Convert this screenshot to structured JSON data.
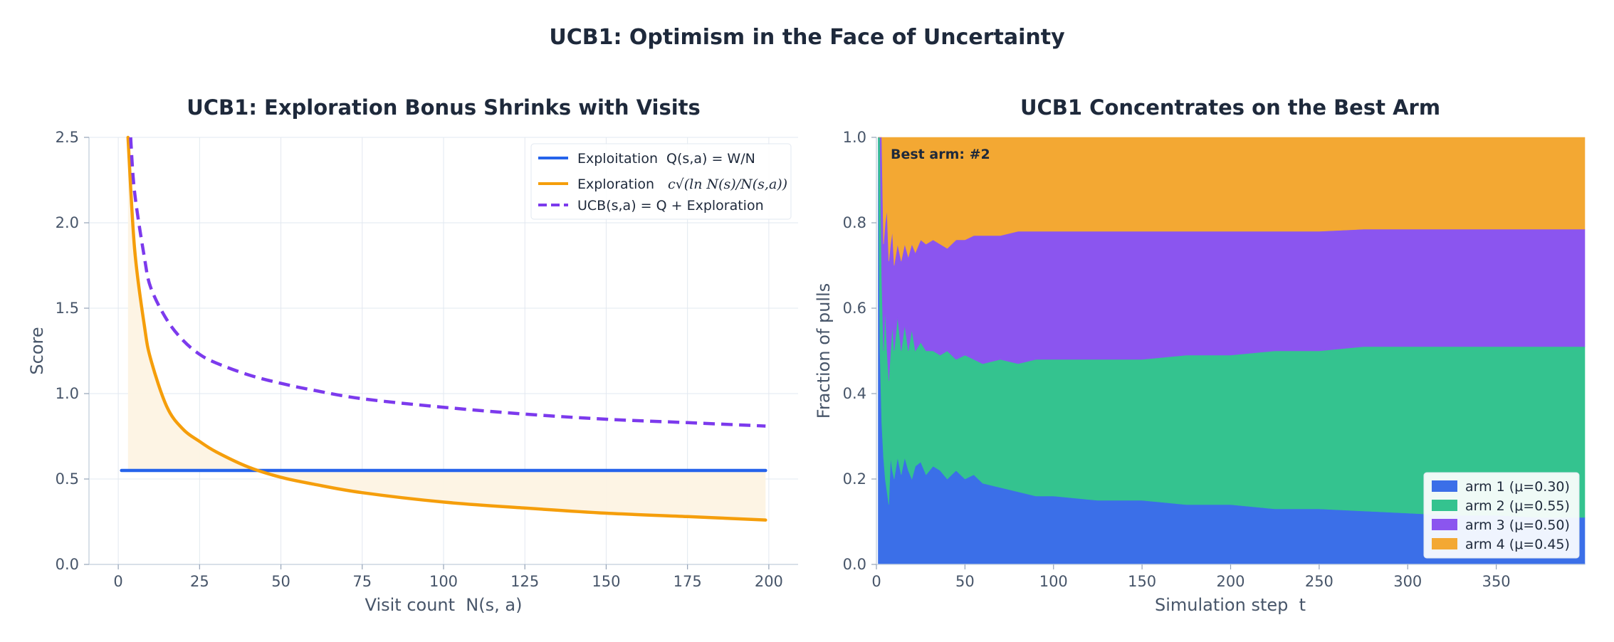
{
  "suptitle": "UCB1: Optimism in the Face of Uncertainty",
  "chart_data": [
    {
      "type": "line",
      "title": "UCB1: Exploration Bonus Shrinks with Visits",
      "xlabel": "Visit count  N(s, a)",
      "ylabel": "Score",
      "xlim": [
        -9,
        209
      ],
      "ylim": [
        0,
        2.5
      ],
      "xticks": [
        "0",
        "25",
        "50",
        "75",
        "100",
        "125",
        "150",
        "175",
        "200"
      ],
      "yticks": [
        "0.0",
        "0.5",
        "1.0",
        "1.5",
        "2.0",
        "2.5"
      ],
      "grid": true,
      "legend_position": "top-right",
      "shaded_region": "between exploitation line and exploration curve",
      "series": [
        {
          "name": "Exploitation  Q(s,a) = W/N",
          "color": "#2563eb",
          "style": "solid",
          "x": [
            1,
            199
          ],
          "y": [
            0.55,
            0.55
          ]
        },
        {
          "name": "Exploration",
          "formula": "c√(ln N(s)/N(s,a))",
          "color": "#f59e0b",
          "style": "solid",
          "x": [
            3,
            5,
            8,
            10,
            15,
            20,
            25,
            30,
            40,
            50,
            60,
            75,
            100,
            125,
            150,
            175,
            199
          ],
          "y": [
            2.5,
            1.85,
            1.4,
            1.2,
            0.92,
            0.79,
            0.72,
            0.66,
            0.57,
            0.51,
            0.47,
            0.42,
            0.365,
            0.33,
            0.3,
            0.28,
            0.26
          ]
        },
        {
          "name": "UCB(s,a) = Q + Exploration",
          "color": "#7c3aed",
          "style": "dashed",
          "x": [
            3.8,
            5,
            8,
            10,
            15,
            20,
            25,
            30,
            40,
            50,
            60,
            75,
            100,
            125,
            150,
            175,
            199
          ],
          "y": [
            2.5,
            2.18,
            1.8,
            1.62,
            1.43,
            1.31,
            1.23,
            1.18,
            1.11,
            1.06,
            1.02,
            0.97,
            0.92,
            0.88,
            0.85,
            0.83,
            0.81
          ]
        }
      ]
    },
    {
      "type": "area",
      "stacked": true,
      "title": "UCB1 Concentrates on the Best Arm",
      "xlabel": "Simulation step  t",
      "ylabel": "Fraction of pulls",
      "xlim": [
        0,
        400
      ],
      "ylim": [
        0,
        1.0
      ],
      "xticks": [
        "0",
        "50",
        "100",
        "150",
        "200",
        "250",
        "300",
        "350"
      ],
      "yticks": [
        "0.0",
        "0.2",
        "0.4",
        "0.6",
        "0.8",
        "1.0"
      ],
      "grid": false,
      "legend_position": "bottom-right",
      "annotation": "Best arm: #2",
      "x": [
        1,
        2,
        3,
        4,
        5,
        6,
        7,
        8,
        9,
        10,
        12,
        14,
        16,
        18,
        20,
        22,
        25,
        28,
        32,
        36,
        40,
        45,
        50,
        55,
        60,
        70,
        80,
        90,
        100,
        125,
        150,
        175,
        200,
        225,
        250,
        275,
        300,
        325,
        350,
        375,
        400
      ],
      "series": [
        {
          "name": "arm 1 (μ=0.30)",
          "color": "#3b6fe8",
          "cum_upper": [
            1.0,
            0.5,
            0.33,
            0.25,
            0.2,
            0.17,
            0.14,
            0.25,
            0.22,
            0.2,
            0.25,
            0.21,
            0.25,
            0.22,
            0.2,
            0.23,
            0.24,
            0.21,
            0.23,
            0.22,
            0.2,
            0.22,
            0.2,
            0.21,
            0.19,
            0.18,
            0.17,
            0.16,
            0.16,
            0.15,
            0.15,
            0.14,
            0.14,
            0.13,
            0.13,
            0.125,
            0.12,
            0.115,
            0.115,
            0.11,
            0.11
          ]
        },
        {
          "name": "arm 2 (μ=0.55)",
          "color": "#34c38f",
          "cum_upper": [
            1.0,
            1.0,
            0.67,
            0.5,
            0.6,
            0.5,
            0.43,
            0.5,
            0.56,
            0.5,
            0.58,
            0.5,
            0.56,
            0.5,
            0.55,
            0.5,
            0.52,
            0.5,
            0.5,
            0.49,
            0.5,
            0.48,
            0.49,
            0.48,
            0.47,
            0.48,
            0.47,
            0.48,
            0.48,
            0.48,
            0.48,
            0.49,
            0.49,
            0.5,
            0.5,
            0.51,
            0.51,
            0.51,
            0.51,
            0.51,
            0.51
          ]
        },
        {
          "name": "arm 3 (μ=0.50)",
          "color": "#8b55ef",
          "cum_upper": [
            1.0,
            1.0,
            1.0,
            0.75,
            0.8,
            0.83,
            0.71,
            0.75,
            0.78,
            0.7,
            0.75,
            0.71,
            0.75,
            0.72,
            0.75,
            0.73,
            0.76,
            0.75,
            0.76,
            0.75,
            0.74,
            0.76,
            0.76,
            0.77,
            0.77,
            0.77,
            0.78,
            0.78,
            0.78,
            0.78,
            0.78,
            0.78,
            0.78,
            0.78,
            0.78,
            0.785,
            0.785,
            0.785,
            0.785,
            0.785,
            0.785
          ]
        },
        {
          "name": "arm 4 (μ=0.45)",
          "color": "#f3a833",
          "cum_upper": [
            1.0,
            1.0,
            1.0,
            1.0,
            1.0,
            1.0,
            1.0,
            1.0,
            1.0,
            1.0,
            1.0,
            1.0,
            1.0,
            1.0,
            1.0,
            1.0,
            1.0,
            1.0,
            1.0,
            1.0,
            1.0,
            1.0,
            1.0,
            1.0,
            1.0,
            1.0,
            1.0,
            1.0,
            1.0,
            1.0,
            1.0,
            1.0,
            1.0,
            1.0,
            1.0,
            1.0,
            1.0,
            1.0,
            1.0,
            1.0,
            1.0
          ]
        }
      ]
    }
  ]
}
